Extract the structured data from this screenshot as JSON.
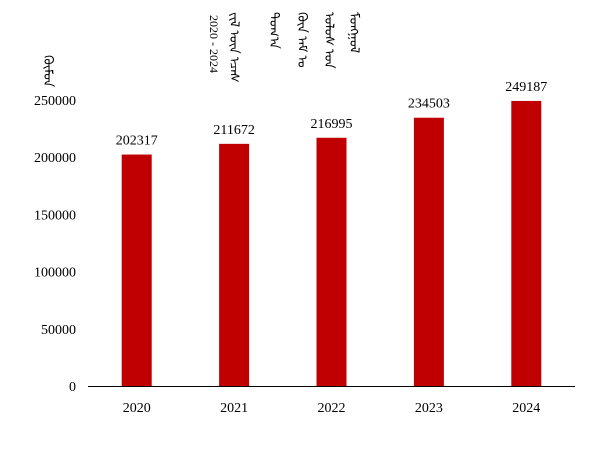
{
  "chart_data": {
    "type": "bar",
    "title_lines": [
      "ᠮᠣᠩᠭᠣᠯ",
      "ᠤᠯᠤᠰ ᠤᠨ",
      "ᠬᠦᠨ ᠠᠮ ᠤ",
      "ᠲᠣᠭ᠎ᠠ",
      "ᠵᠢᠯ ᠦᠨ ᠡᠴᠡᠰ"
    ],
    "year_range": "2020 - 2024",
    "ylabel": "ᠬᠦᠮᠦᠨ",
    "categories": [
      "2020",
      "2021",
      "2022",
      "2023",
      "2024"
    ],
    "values": [
      202317,
      211672,
      216995,
      234503,
      249187
    ],
    "data_labels": [
      "202317",
      "211672",
      "216995",
      "234503",
      "249187"
    ],
    "yticks": [
      0,
      50000,
      100000,
      150000,
      200000,
      250000
    ],
    "ytick_labels": [
      "0",
      "50000",
      "100000",
      "150000",
      "200000",
      "250000"
    ],
    "ylim": [
      0,
      250000
    ],
    "grid": false,
    "legend": "none",
    "bar_color": "#c00000"
  }
}
